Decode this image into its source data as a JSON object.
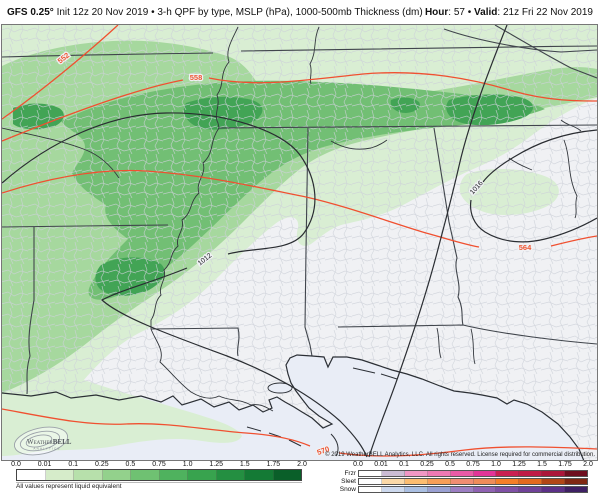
{
  "header": {
    "product": "GFS 0.25°",
    "title_rest": " Init 12z 20 Nov 2019 • 3-h QPF by type, MSLP (hPa), 1000-500mb Thickness (dm)",
    "hour_label": "Hour",
    "hour_value": ": 57",
    "separator": " • ",
    "valid_label": "Valid",
    "valid_value": ": 21z Fri 22 Nov 2019"
  },
  "map": {
    "labels": {
      "t552": "552",
      "t558": "558",
      "t564": "564",
      "t570": "570",
      "p1012": "1012",
      "p1016": "1016"
    },
    "thickness_color": "#ef5430",
    "mslp_color": "#2a2d32"
  },
  "logo": {
    "word1": "Weather",
    "word2": "BELL",
    "sub": "ANALYTICS"
  },
  "copyright": "© 2019 WeatherBELL Analytics, LLC. All rights reserved. License required for commercial distribution.",
  "chart_data": {
    "type": "heatmap",
    "title": "GFS 0.25° 3-h QPF by type, MSLP (hPa), 1000-500mb Thickness (dm)",
    "init": "12z 20 Nov 2019",
    "forecast_hour": 57,
    "valid": "21z Fri 22 Nov 2019",
    "thickness_contours_dm": [
      552,
      558,
      564,
      570
    ],
    "mslp_contours_hpa": [
      1012,
      1016
    ],
    "qpf_scale_in": [
      0.0,
      0.01,
      0.1,
      0.25,
      0.5,
      0.75,
      1.0,
      1.25,
      1.5,
      1.75,
      2.0
    ],
    "legend_position": "bottom"
  },
  "legend": {
    "qpf": {
      "ticks": [
        "0.0",
        "0.01",
        "0.1",
        "0.25",
        "0.5",
        "0.75",
        "1.0",
        "1.25",
        "1.5",
        "1.75",
        "2.0"
      ],
      "colors": [
        "#ffffff",
        "#d6ecca",
        "#b7e0ab",
        "#93d18c",
        "#6fc172",
        "#4fb25e",
        "#38a34e",
        "#248f41",
        "#147a35",
        "#0a5f29"
      ],
      "caption": "All values represent liquid equivalent"
    },
    "ptype": {
      "ticks": [
        "0.0",
        "0.01",
        "0.1",
        "0.25",
        "0.5",
        "0.75",
        "1.0",
        "1.25",
        "1.5",
        "1.75",
        "2.0"
      ],
      "rows": [
        {
          "label": "Frzr",
          "colors": [
            "#ffffff",
            "#cbbcd3",
            "#f097c4",
            "#ee79b4",
            "#e95aa6",
            "#e23598",
            "#c92052",
            "#bf1c46",
            "#ab173a",
            "#6e0f1f"
          ]
        },
        {
          "label": "Sleet",
          "colors": [
            "#ffffff",
            "#fbd9a8",
            "#fcbd70",
            "#f89f58",
            "#f08d72",
            "#ef8c5a",
            "#f57f28",
            "#e46a1e",
            "#b14616",
            "#7f2812"
          ]
        },
        {
          "label": "Snow",
          "colors": [
            "#ffffff",
            "#cdd9ee",
            "#aabfe2",
            "#9aa0d2",
            "#9c7ec2",
            "#8f62b2",
            "#7f50a5",
            "#6f4298",
            "#5b3087",
            "#3e2063"
          ]
        }
      ]
    }
  }
}
